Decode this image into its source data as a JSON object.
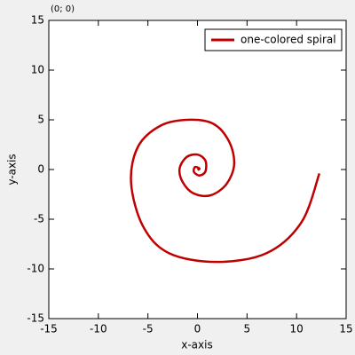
{
  "chart_data": {
    "type": "line",
    "corner_label": "(0; 0)",
    "x_label": "x-axis",
    "y_label": "y-axis",
    "xlim": [
      -15,
      15
    ],
    "ylim": [
      -15,
      15
    ],
    "xticks": [
      -15,
      -10,
      -5,
      0,
      5,
      10,
      15
    ],
    "yticks": [
      -15,
      -10,
      -5,
      0,
      5,
      10,
      15
    ],
    "legend": "upper right",
    "series": [
      {
        "name": "one-colored spiral",
        "color": "#c00000",
        "x": [
          0,
          0.2,
          -0.25,
          -0.35,
          0.2,
          0.8,
          0.8,
          0,
          -1.1,
          -1.8,
          -1.5,
          -0.4,
          1.3,
          2.9,
          3.7,
          3.2,
          1.6,
          -1.0,
          -3.75,
          -6.0,
          -6.7,
          -5.5,
          -2.9,
          1.9,
          7.0,
          10.5,
          12.3
        ],
        "y": [
          -0.05,
          0.1,
          0.25,
          -0.25,
          -0.6,
          -0.2,
          0.9,
          1.5,
          1.25,
          0.1,
          -1.25,
          -2.4,
          -2.6,
          -1.5,
          0.5,
          2.8,
          4.6,
          5.0,
          4.4,
          2.3,
          -1.3,
          -5.7,
          -8.4,
          -9.3,
          -8.4,
          -5.3,
          -0.4
        ]
      }
    ]
  }
}
